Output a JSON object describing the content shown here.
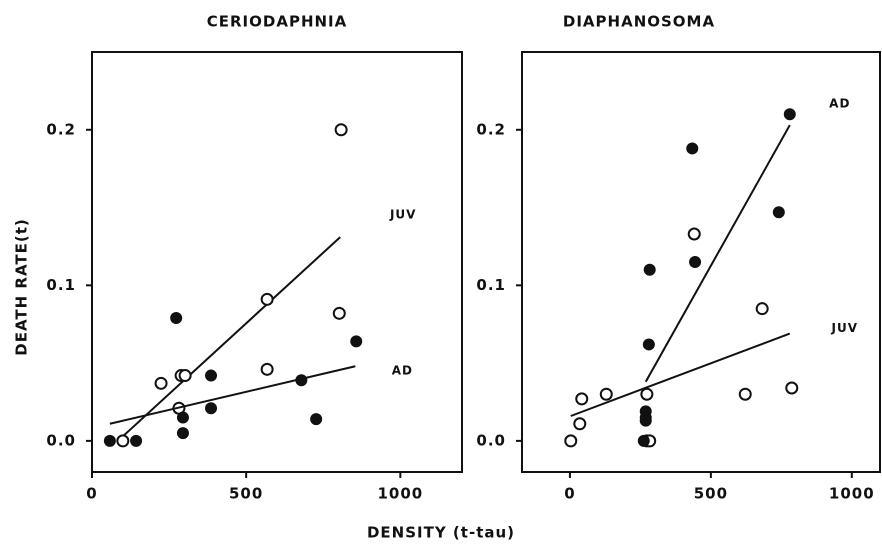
{
  "ylabel": "DEATH RATE(t)",
  "xlabel": "DENSITY (t-tau)",
  "chart_data": [
    {
      "type": "scatter",
      "title": "CERIODAPHNIA",
      "xlim": [
        0,
        1200
      ],
      "ylim": [
        -0.02,
        0.25
      ],
      "xticks": [
        0,
        500,
        1000
      ],
      "yticks": [
        {
          "value": 0,
          "label": "0.0"
        },
        0.1,
        0.2
      ],
      "series": [
        {
          "name": "JUV",
          "marker": "open",
          "color": "#111111",
          "x": [
            100,
            224,
            282,
            289,
            302,
            568,
            568,
            802,
            808
          ],
          "values": [
            0,
            0.037,
            0.021,
            0.042,
            0.042,
            0.046,
            0.091,
            0.082,
            0.2
          ],
          "fit_x": [
            84,
            805
          ],
          "fit_values": [
            0,
            0.131
          ]
        },
        {
          "name": "AD",
          "marker": "filled",
          "color": "#111111",
          "x": [
            58,
            143,
            273,
            295,
            295,
            386,
            386,
            679,
            727,
            857
          ],
          "values": [
            0,
            0,
            0.079,
            0.005,
            0.015,
            0.021,
            0.042,
            0.039,
            0.014,
            0.064
          ],
          "fit_x": [
            58,
            854
          ],
          "fit_values": [
            0.011,
            0.048
          ]
        }
      ]
    },
    {
      "type": "scatter",
      "title": "DIAPHANOSOMA",
      "xlim": [
        -170,
        1100
      ],
      "ylim": [
        -0.02,
        0.25
      ],
      "xticks": [
        0,
        500,
        1000
      ],
      "yticks": [
        {
          "value": 0,
          "label": "0.0"
        },
        0.1,
        0.2
      ],
      "series": [
        {
          "name": "JUV",
          "marker": "open",
          "color": "#111111",
          "x": [
            3,
            35,
            42,
            129,
            273,
            273,
            283,
            441,
            622,
            682,
            787
          ],
          "values": [
            0,
            0.011,
            0.027,
            0.03,
            0.03,
            0,
            0,
            0.133,
            0.03,
            0.085,
            0.034
          ],
          "fit_x": [
            3,
            780
          ],
          "fit_values": [
            0.016,
            0.069
          ]
        },
        {
          "name": "AD",
          "marker": "filled",
          "color": "#111111",
          "x": [
            283,
            280,
            269,
            269,
            269,
            262,
            444,
            434,
            741,
            780
          ],
          "values": [
            0.11,
            0.062,
            0.019,
            0.015,
            0.013,
            0,
            0.115,
            0.188,
            0.147,
            0.21
          ],
          "fit_x": [
            269,
            780
          ],
          "fit_values": [
            0.038,
            0.203
          ]
        }
      ]
    }
  ]
}
